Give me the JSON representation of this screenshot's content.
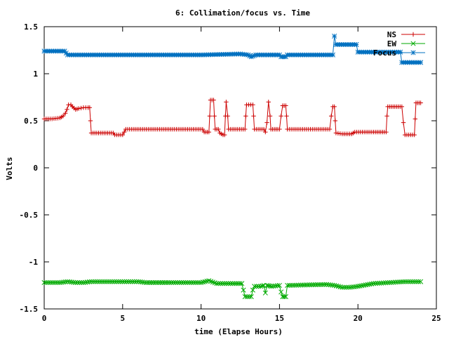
{
  "chart_data": {
    "type": "line",
    "title": "6: Collimation/focus vs. Time",
    "xlabel": "time (Elapse Hours)",
    "ylabel": "Volts",
    "xlim": [
      0,
      25
    ],
    "ylim": [
      -1.5,
      1.5
    ],
    "x_ticks": [
      0,
      5,
      10,
      15,
      20,
      25
    ],
    "x_tick_labels": [
      "0",
      "5",
      "10",
      "15",
      "20",
      "25"
    ],
    "y_ticks": [
      -1.5,
      -1,
      -0.5,
      0,
      0.5,
      1,
      1.5
    ],
    "y_tick_labels": [
      "-1.5",
      "-1",
      "-0.5",
      "0",
      "0.5",
      "1",
      "1.5"
    ],
    "legend_position": "top-right",
    "series": [
      {
        "name": "NS",
        "color": "#cc0000",
        "marker": "plus",
        "segments": [
          [
            [
              0.0,
              0.52
            ],
            [
              0.5,
              0.52
            ],
            [
              1.0,
              0.53
            ],
            [
              1.2,
              0.55
            ],
            [
              1.35,
              0.58
            ],
            [
              1.45,
              0.62
            ],
            [
              1.55,
              0.67
            ],
            [
              1.7,
              0.67
            ],
            [
              1.8,
              0.65
            ],
            [
              2.0,
              0.62
            ],
            [
              2.2,
              0.63
            ],
            [
              2.5,
              0.64
            ],
            [
              2.8,
              0.64
            ],
            [
              2.9,
              0.64
            ],
            [
              2.95,
              0.5
            ],
            [
              3.0,
              0.37
            ],
            [
              4.4,
              0.37
            ],
            [
              4.5,
              0.35
            ],
            [
              5.0,
              0.35
            ],
            [
              5.1,
              0.38
            ],
            [
              5.2,
              0.41
            ],
            [
              10.1,
              0.41
            ],
            [
              10.2,
              0.38
            ],
            [
              10.5,
              0.38
            ],
            [
              10.55,
              0.55
            ],
            [
              10.6,
              0.72
            ],
            [
              10.8,
              0.72
            ],
            [
              10.85,
              0.55
            ],
            [
              10.9,
              0.41
            ],
            [
              11.1,
              0.41
            ],
            [
              11.2,
              0.37
            ],
            [
              11.4,
              0.35
            ],
            [
              11.5,
              0.35
            ],
            [
              11.55,
              0.55
            ],
            [
              11.6,
              0.7
            ],
            [
              11.7,
              0.55
            ],
            [
              11.75,
              0.41
            ],
            [
              12.8,
              0.41
            ],
            [
              12.85,
              0.55
            ],
            [
              12.9,
              0.67
            ],
            [
              13.3,
              0.67
            ],
            [
              13.35,
              0.55
            ],
            [
              13.4,
              0.41
            ],
            [
              14.0,
              0.41
            ],
            [
              14.1,
              0.38
            ],
            [
              14.2,
              0.48
            ],
            [
              14.3,
              0.7
            ],
            [
              14.4,
              0.55
            ],
            [
              14.45,
              0.41
            ],
            [
              15.0,
              0.41
            ],
            [
              15.1,
              0.55
            ],
            [
              15.2,
              0.66
            ],
            [
              15.4,
              0.66
            ],
            [
              15.45,
              0.55
            ],
            [
              15.5,
              0.41
            ],
            [
              18.2,
              0.41
            ],
            [
              18.3,
              0.55
            ],
            [
              18.4,
              0.65
            ],
            [
              18.5,
              0.65
            ],
            [
              18.55,
              0.5
            ],
            [
              18.6,
              0.37
            ],
            [
              19.0,
              0.36
            ],
            [
              19.6,
              0.36
            ],
            [
              19.8,
              0.38
            ],
            [
              21.0,
              0.38
            ],
            [
              21.8,
              0.38
            ],
            [
              21.85,
              0.55
            ],
            [
              21.9,
              0.65
            ],
            [
              22.8,
              0.65
            ],
            [
              22.9,
              0.48
            ],
            [
              23.0,
              0.35
            ],
            [
              23.6,
              0.35
            ],
            [
              23.65,
              0.52
            ],
            [
              23.7,
              0.69
            ],
            [
              24.0,
              0.69
            ]
          ]
        ]
      },
      {
        "name": "EW",
        "color": "#00aa00",
        "marker": "x",
        "segments": [
          [
            [
              0.0,
              -1.22
            ],
            [
              1.0,
              -1.22
            ],
            [
              1.5,
              -1.21
            ],
            [
              2.0,
              -1.22
            ],
            [
              2.5,
              -1.22
            ],
            [
              3.0,
              -1.21
            ],
            [
              4.0,
              -1.21
            ],
            [
              5.0,
              -1.21
            ],
            [
              6.0,
              -1.21
            ],
            [
              6.5,
              -1.22
            ],
            [
              8.0,
              -1.22
            ],
            [
              9.0,
              -1.22
            ],
            [
              10.0,
              -1.22
            ],
            [
              10.5,
              -1.2
            ],
            [
              11.0,
              -1.23
            ],
            [
              12.0,
              -1.23
            ],
            [
              12.6,
              -1.23
            ],
            [
              12.7,
              -1.3
            ],
            [
              12.8,
              -1.37
            ],
            [
              13.2,
              -1.37
            ],
            [
              13.3,
              -1.3
            ],
            [
              13.4,
              -1.26
            ],
            [
              13.8,
              -1.26
            ],
            [
              14.0,
              -1.25
            ],
            [
              14.1,
              -1.33
            ],
            [
              14.2,
              -1.25
            ],
            [
              14.5,
              -1.26
            ],
            [
              15.0,
              -1.25
            ],
            [
              15.1,
              -1.32
            ],
            [
              15.2,
              -1.37
            ],
            [
              15.4,
              -1.37
            ],
            [
              15.5,
              -1.25
            ],
            [
              18.0,
              -1.24
            ],
            [
              18.5,
              -1.25
            ],
            [
              19.0,
              -1.27
            ],
            [
              19.5,
              -1.27
            ],
            [
              20.0,
              -1.26
            ],
            [
              21.0,
              -1.23
            ],
            [
              22.0,
              -1.22
            ],
            [
              23.0,
              -1.21
            ],
            [
              24.0,
              -1.21
            ]
          ]
        ]
      },
      {
        "name": "Focus",
        "color": "#0070c0",
        "marker": "star",
        "segments": [
          [
            [
              0.0,
              1.24
            ],
            [
              1.3,
              1.24
            ],
            [
              1.4,
              1.22
            ],
            [
              1.5,
              1.2
            ],
            [
              10.0,
              1.2
            ],
            [
              12.5,
              1.21
            ],
            [
              13.0,
              1.2
            ],
            [
              13.2,
              1.18
            ],
            [
              13.5,
              1.2
            ],
            [
              15.0,
              1.2
            ],
            [
              15.1,
              1.18
            ],
            [
              15.4,
              1.18
            ],
            [
              15.5,
              1.2
            ],
            [
              18.4,
              1.2
            ],
            [
              18.5,
              1.4
            ],
            [
              18.6,
              1.31
            ],
            [
              19.9,
              1.31
            ],
            [
              20.0,
              1.23
            ],
            [
              22.7,
              1.23
            ],
            [
              22.8,
              1.12
            ],
            [
              24.0,
              1.12
            ]
          ]
        ]
      }
    ]
  }
}
